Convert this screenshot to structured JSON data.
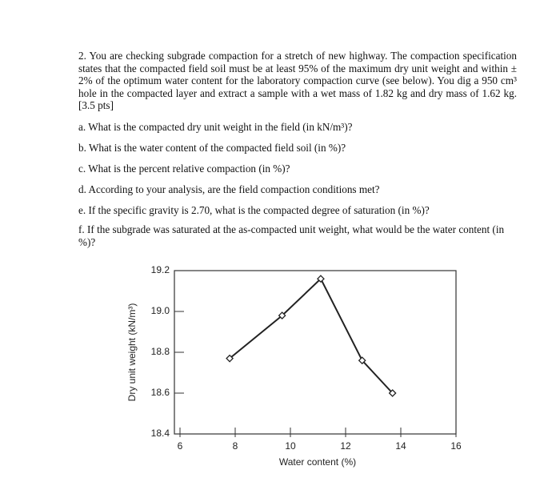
{
  "question": {
    "intro": "2. You are checking subgrade compaction for a stretch of new highway. The compaction specification states that the compacted field soil must be at least 95% of the maximum dry unit weight and within ± 2% of the optimum water content for the laboratory compaction curve (see below). You dig a 950 cm³ hole in the compacted layer and extract a sample with a wet mass of 1.82 kg and dry mass of 1.62 kg. [3.5 pts]",
    "parts": [
      "a. What is the compacted dry unit weight in the field (in kN/m³)?",
      "b. What is the water content of the compacted field soil (in %)?",
      "c. What is the percent relative compaction (in %)?",
      "d. According to your analysis, are the field compaction conditions met?",
      "e. If the specific gravity is 2.70, what is the compacted degree of saturation (in %)?",
      "f. If the subgrade was saturated at the as-compacted unit weight, what would be the water content (in %)?"
    ]
  },
  "chart_data": {
    "type": "line",
    "x_label": "Water content (%)",
    "y_label": "Dry unit weight (kN/m³)",
    "x": [
      7.8,
      9.7,
      11.1,
      12.6,
      13.7
    ],
    "values": [
      18.77,
      18.98,
      19.16,
      18.76,
      18.6
    ],
    "color": "#222222",
    "xlim": [
      6,
      16
    ],
    "xticks": [
      6,
      8,
      10,
      12,
      14,
      16
    ],
    "ylim": [
      18.4,
      19.2
    ],
    "yticks": [
      18.4,
      18.6,
      18.8,
      {
        "value": 19,
        "label": "19.0"
      },
      19.2
    ]
  }
}
